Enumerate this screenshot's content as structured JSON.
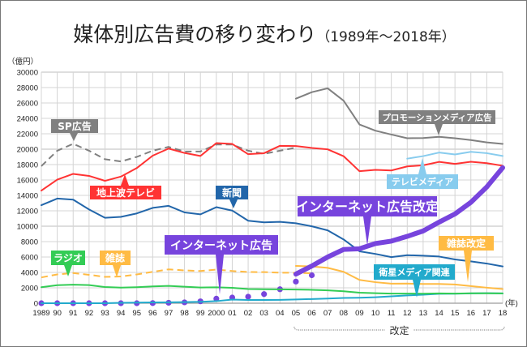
{
  "title": "媒体別広告費の移り変わり",
  "subtitle": "（1989年〜2018年）",
  "chart_data": {
    "type": "line",
    "ylabel": "（億円）",
    "xlabel": "(年)",
    "ylim": [
      0,
      30000
    ],
    "yticks": [
      0,
      2000,
      4000,
      6000,
      8000,
      10000,
      12000,
      14000,
      16000,
      18000,
      20000,
      22000,
      24000,
      26000,
      28000,
      30000
    ],
    "xlim": [
      1989,
      2018
    ],
    "xtick_labels": [
      "1989",
      "90",
      "91",
      "92",
      "93",
      "94",
      "95",
      "96",
      "97",
      "98",
      "99",
      "2000",
      "01",
      "02",
      "03",
      "04",
      "05",
      "06",
      "07",
      "08",
      "09",
      "10",
      "11",
      "12",
      "13",
      "14",
      "15",
      "16",
      "17",
      "18"
    ],
    "grid": true,
    "revision_bracket_label": "改定",
    "series": [
      {
        "name": "SP広告",
        "color": "#808080",
        "style": "dashed",
        "x_start": 1989,
        "values": [
          17800,
          19800,
          20700,
          19800,
          18700,
          18400,
          19000,
          19800,
          20300,
          19700,
          19700,
          20600,
          20600,
          19800,
          19400,
          19800,
          20200
        ]
      },
      {
        "name": "プロモーションメディア広告",
        "color": "#808080",
        "style": "solid",
        "x_start": 2005,
        "values": [
          26560,
          27400,
          27900,
          26300,
          23200,
          22400,
          21900,
          21420,
          21450,
          21610,
          21420,
          21180,
          20880,
          20690
        ]
      },
      {
        "name": "地上波テレビ",
        "color": "#ff3333",
        "style": "solid",
        "x_start": 1989,
        "values": [
          14630,
          16050,
          16790,
          16530,
          15890,
          16440,
          17550,
          19160,
          20080,
          19510,
          19120,
          20790,
          20680,
          19350,
          19480,
          20440,
          20410,
          20160,
          19980,
          19090,
          17140,
          17320,
          17240,
          17760,
          17910,
          18350,
          18090,
          18370,
          18180,
          17850
        ]
      },
      {
        "name": "テレビメディア",
        "color": "#88ccee",
        "style": "solid",
        "x_start": 2012,
        "values": [
          18770,
          19100,
          19560,
          19320,
          19660,
          19480,
          19120
        ]
      },
      {
        "name": "新聞",
        "color": "#2266aa",
        "style": "solid",
        "x_start": 1989,
        "values": [
          12730,
          13590,
          13450,
          12170,
          11090,
          11210,
          11660,
          12380,
          12640,
          11790,
          11540,
          12470,
          12030,
          10710,
          10500,
          10560,
          10380,
          9990,
          9460,
          8280,
          6740,
          6400,
          5990,
          6240,
          6170,
          6060,
          5680,
          5430,
          5150,
          4780
        ]
      },
      {
        "name": "インターネット広告",
        "color": "#7744dd",
        "style": "dotted",
        "x_start": 1989,
        "values": [
          0,
          0,
          0,
          0,
          0,
          0,
          0,
          16,
          60,
          114,
          241,
          590,
          735,
          845,
          1183,
          1814,
          2808,
          3630
        ]
      },
      {
        "name": "インターネット広告改定",
        "color": "#7744dd",
        "style": "thick",
        "x_start": 2005,
        "values": [
          3780,
          4830,
          6000,
          6980,
          7070,
          7750,
          8060,
          8680,
          9380,
          10520,
          11590,
          13100,
          15090,
          17590
        ]
      },
      {
        "name": "雑誌",
        "color": "#ffbb44",
        "style": "dashed",
        "x_start": 1989,
        "values": [
          3350,
          3740,
          3920,
          3690,
          3420,
          3470,
          3740,
          4070,
          4400,
          4260,
          4180,
          4370,
          4180,
          4050,
          4040,
          3970,
          3950,
          3890
        ]
      },
      {
        "name": "雑誌改定",
        "color": "#ffbb44",
        "style": "solid",
        "x_start": 2005,
        "values": [
          4840,
          4780,
          4590,
          4080,
          3030,
          2730,
          2540,
          2550,
          2500,
          2500,
          2440,
          2220,
          2020,
          1840
        ]
      },
      {
        "name": "ラジオ",
        "color": "#33cc55",
        "style": "solid",
        "x_start": 1989,
        "values": [
          2080,
          2340,
          2410,
          2350,
          2100,
          2020,
          2080,
          2180,
          2250,
          2150,
          2040,
          2070,
          2000,
          1840,
          1810,
          1800,
          1780,
          1740,
          1670,
          1550,
          1370,
          1300,
          1250,
          1250,
          1240,
          1270,
          1250,
          1290,
          1290,
          1280
        ]
      },
      {
        "name": "衛星メディア関連",
        "color": "#22aacc",
        "style": "solid",
        "x_start": 1989,
        "values": [
          0,
          0,
          0,
          0,
          0,
          50,
          80,
          100,
          120,
          140,
          180,
          270,
          470,
          420,
          420,
          440,
          490,
          540,
          600,
          680,
          710,
          780,
          890,
          1010,
          1110,
          1220,
          1240,
          1280,
          1300,
          1280
        ]
      }
    ]
  }
}
